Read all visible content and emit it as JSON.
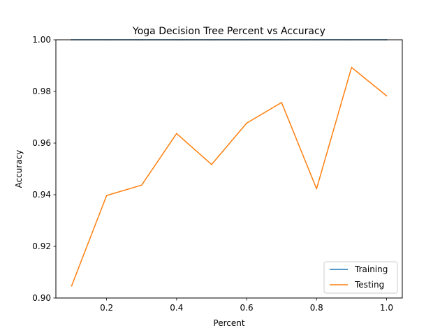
{
  "chart_data": {
    "type": "line",
    "title": "Yoga Decision Tree Percent vs Accuracy",
    "xlabel": "Percent",
    "ylabel": "Accuracy",
    "xlim": [
      0.055,
      1.045
    ],
    "ylim": [
      0.9,
      1.0
    ],
    "x_ticks": [
      0.2,
      0.4,
      0.6,
      0.8,
      1.0
    ],
    "x_tick_labels": [
      "0.2",
      "0.4",
      "0.6",
      "0.8",
      "1.0"
    ],
    "y_ticks": [
      0.9,
      0.92,
      0.94,
      0.96,
      0.98,
      1.0
    ],
    "y_tick_labels": [
      "0.90",
      "0.92",
      "0.94",
      "0.96",
      "0.98",
      "1.00"
    ],
    "x": [
      0.1,
      0.2,
      0.3,
      0.4,
      0.5,
      0.6,
      0.7,
      0.8,
      0.9,
      1.0
    ],
    "series": [
      {
        "name": "Training",
        "color": "#1f77b4",
        "values": [
          1.0,
          1.0,
          1.0,
          1.0,
          1.0,
          1.0,
          1.0,
          1.0,
          1.0,
          1.0
        ]
      },
      {
        "name": "Testing",
        "color": "#ff7f0e",
        "values": [
          0.9047,
          0.9397,
          0.9437,
          0.9637,
          0.9517,
          0.9677,
          0.9757,
          0.9423,
          0.9893,
          0.9783
        ]
      }
    ],
    "legend_position": "lower-right",
    "grid": false
  }
}
